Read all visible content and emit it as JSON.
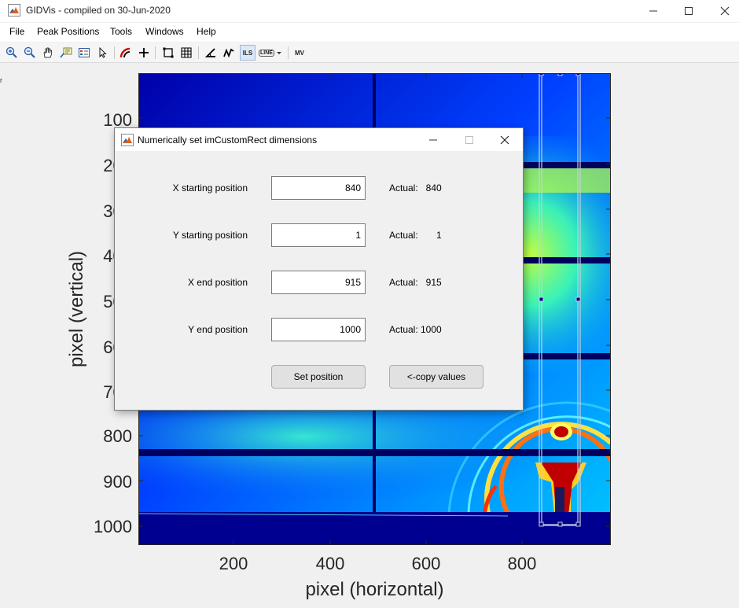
{
  "window": {
    "title": "GIDVis - compiled on 30-Jun-2020"
  },
  "menu": {
    "items": [
      "File",
      "Peak Positions",
      "Tools",
      "Windows",
      "Help"
    ]
  },
  "toolbar": {
    "ils_label": "ILS",
    "line_label": "LINE",
    "mv_label": "MV"
  },
  "figure": {
    "y_ticks": [
      "100",
      "200",
      "300",
      "400",
      "500",
      "600",
      "700",
      "800",
      "900",
      "1000"
    ],
    "x_ticks": [
      "200",
      "400",
      "600",
      "800"
    ],
    "xlabel": "pixel (horizontal)",
    "ylabel": "pixel (vertical)",
    "left_marker": "r",
    "colors": {
      "low": "#00008f",
      "mid": "#00ff80",
      "high": "#ff1a00",
      "rect": "#c7cde0"
    }
  },
  "dialog": {
    "title": "Numerically set imCustomRect dimensions",
    "actual_prefix": "Actual:",
    "rows": [
      {
        "label": "X starting position",
        "value": "840",
        "actual": "840"
      },
      {
        "label": "Y starting position",
        "value": "1",
        "actual": "1"
      },
      {
        "label": "X end position",
        "value": "915",
        "actual": "915"
      },
      {
        "label": "Y end position",
        "value": "1000",
        "actual": "1000"
      }
    ],
    "set_button": "Set position",
    "copy_button": "<-copy values"
  }
}
